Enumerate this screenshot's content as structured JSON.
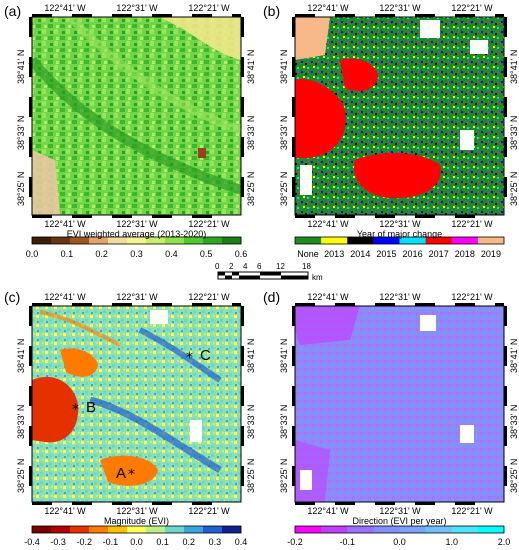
{
  "panels": [
    {
      "letter": "(a)",
      "type": "continuous",
      "colorbar_title": "EVI weighted average (2013-2020)",
      "colorbar_colors": [
        "#3a1d0c",
        "#6b3410",
        "#9a5720",
        "#e0a36c",
        "#f0dca0",
        "#f6f48a",
        "#c9ee6a",
        "#8fe24a",
        "#4fcb2f",
        "#2ea823",
        "#1a7d17"
      ],
      "colorbar_ticks": [
        "0.0",
        "0.1",
        "0.2",
        "0.3",
        "0.4",
        "0.5",
        "0.6"
      ]
    },
    {
      "letter": "(b)",
      "type": "categorical",
      "colorbar_title": "Year of major change",
      "categories": [
        "None",
        "2013",
        "2014",
        "2015",
        "2016",
        "2017",
        "2018",
        "2019"
      ],
      "category_colors": [
        "#1f8a1f",
        "#ffff00",
        "#000000",
        "#0000ff",
        "#00e0ff",
        "#ff0000",
        "#ff00ff",
        "#f7b98a"
      ]
    },
    {
      "letter": "(c)",
      "type": "continuous",
      "colorbar_title": "Magnitude (EVI)",
      "colorbar_colors": [
        "#7a0000",
        "#b20000",
        "#e53000",
        "#ff7a00",
        "#ffc000",
        "#ffff5a",
        "#b8f08a",
        "#6ed8c8",
        "#3aa6e0",
        "#2060d0",
        "#102090"
      ],
      "colorbar_ticks": [
        "-0.4",
        "-0.3",
        "-0.2",
        "-0.1",
        "0.0",
        "0.1",
        "0.2",
        "0.3",
        "0.4"
      ],
      "points": [
        "C",
        "B",
        "A"
      ]
    },
    {
      "letter": "(d)",
      "type": "continuous",
      "colorbar_title": "Direction (EVI per year)",
      "colorbar_colors": [
        "#ff00ff",
        "#c040ff",
        "#9a70ff",
        "#8590ff",
        "#7aa2ff",
        "#70c0ff",
        "#4ae6ff",
        "#00ffff"
      ],
      "colorbar_ticks": [
        "-0.2",
        "-0.1",
        "0.0",
        "1.0",
        "2.0"
      ]
    }
  ],
  "lon_labels": [
    "122°41' W",
    "122°31' W",
    "122°21' W"
  ],
  "lat_labels": [
    "38°41' N",
    "38°33' N",
    "38°25' N"
  ],
  "scale": {
    "ticks": [
      "0",
      "2",
      "4",
      "6",
      "",
      "12",
      "",
      "18"
    ],
    "unit": "km"
  }
}
